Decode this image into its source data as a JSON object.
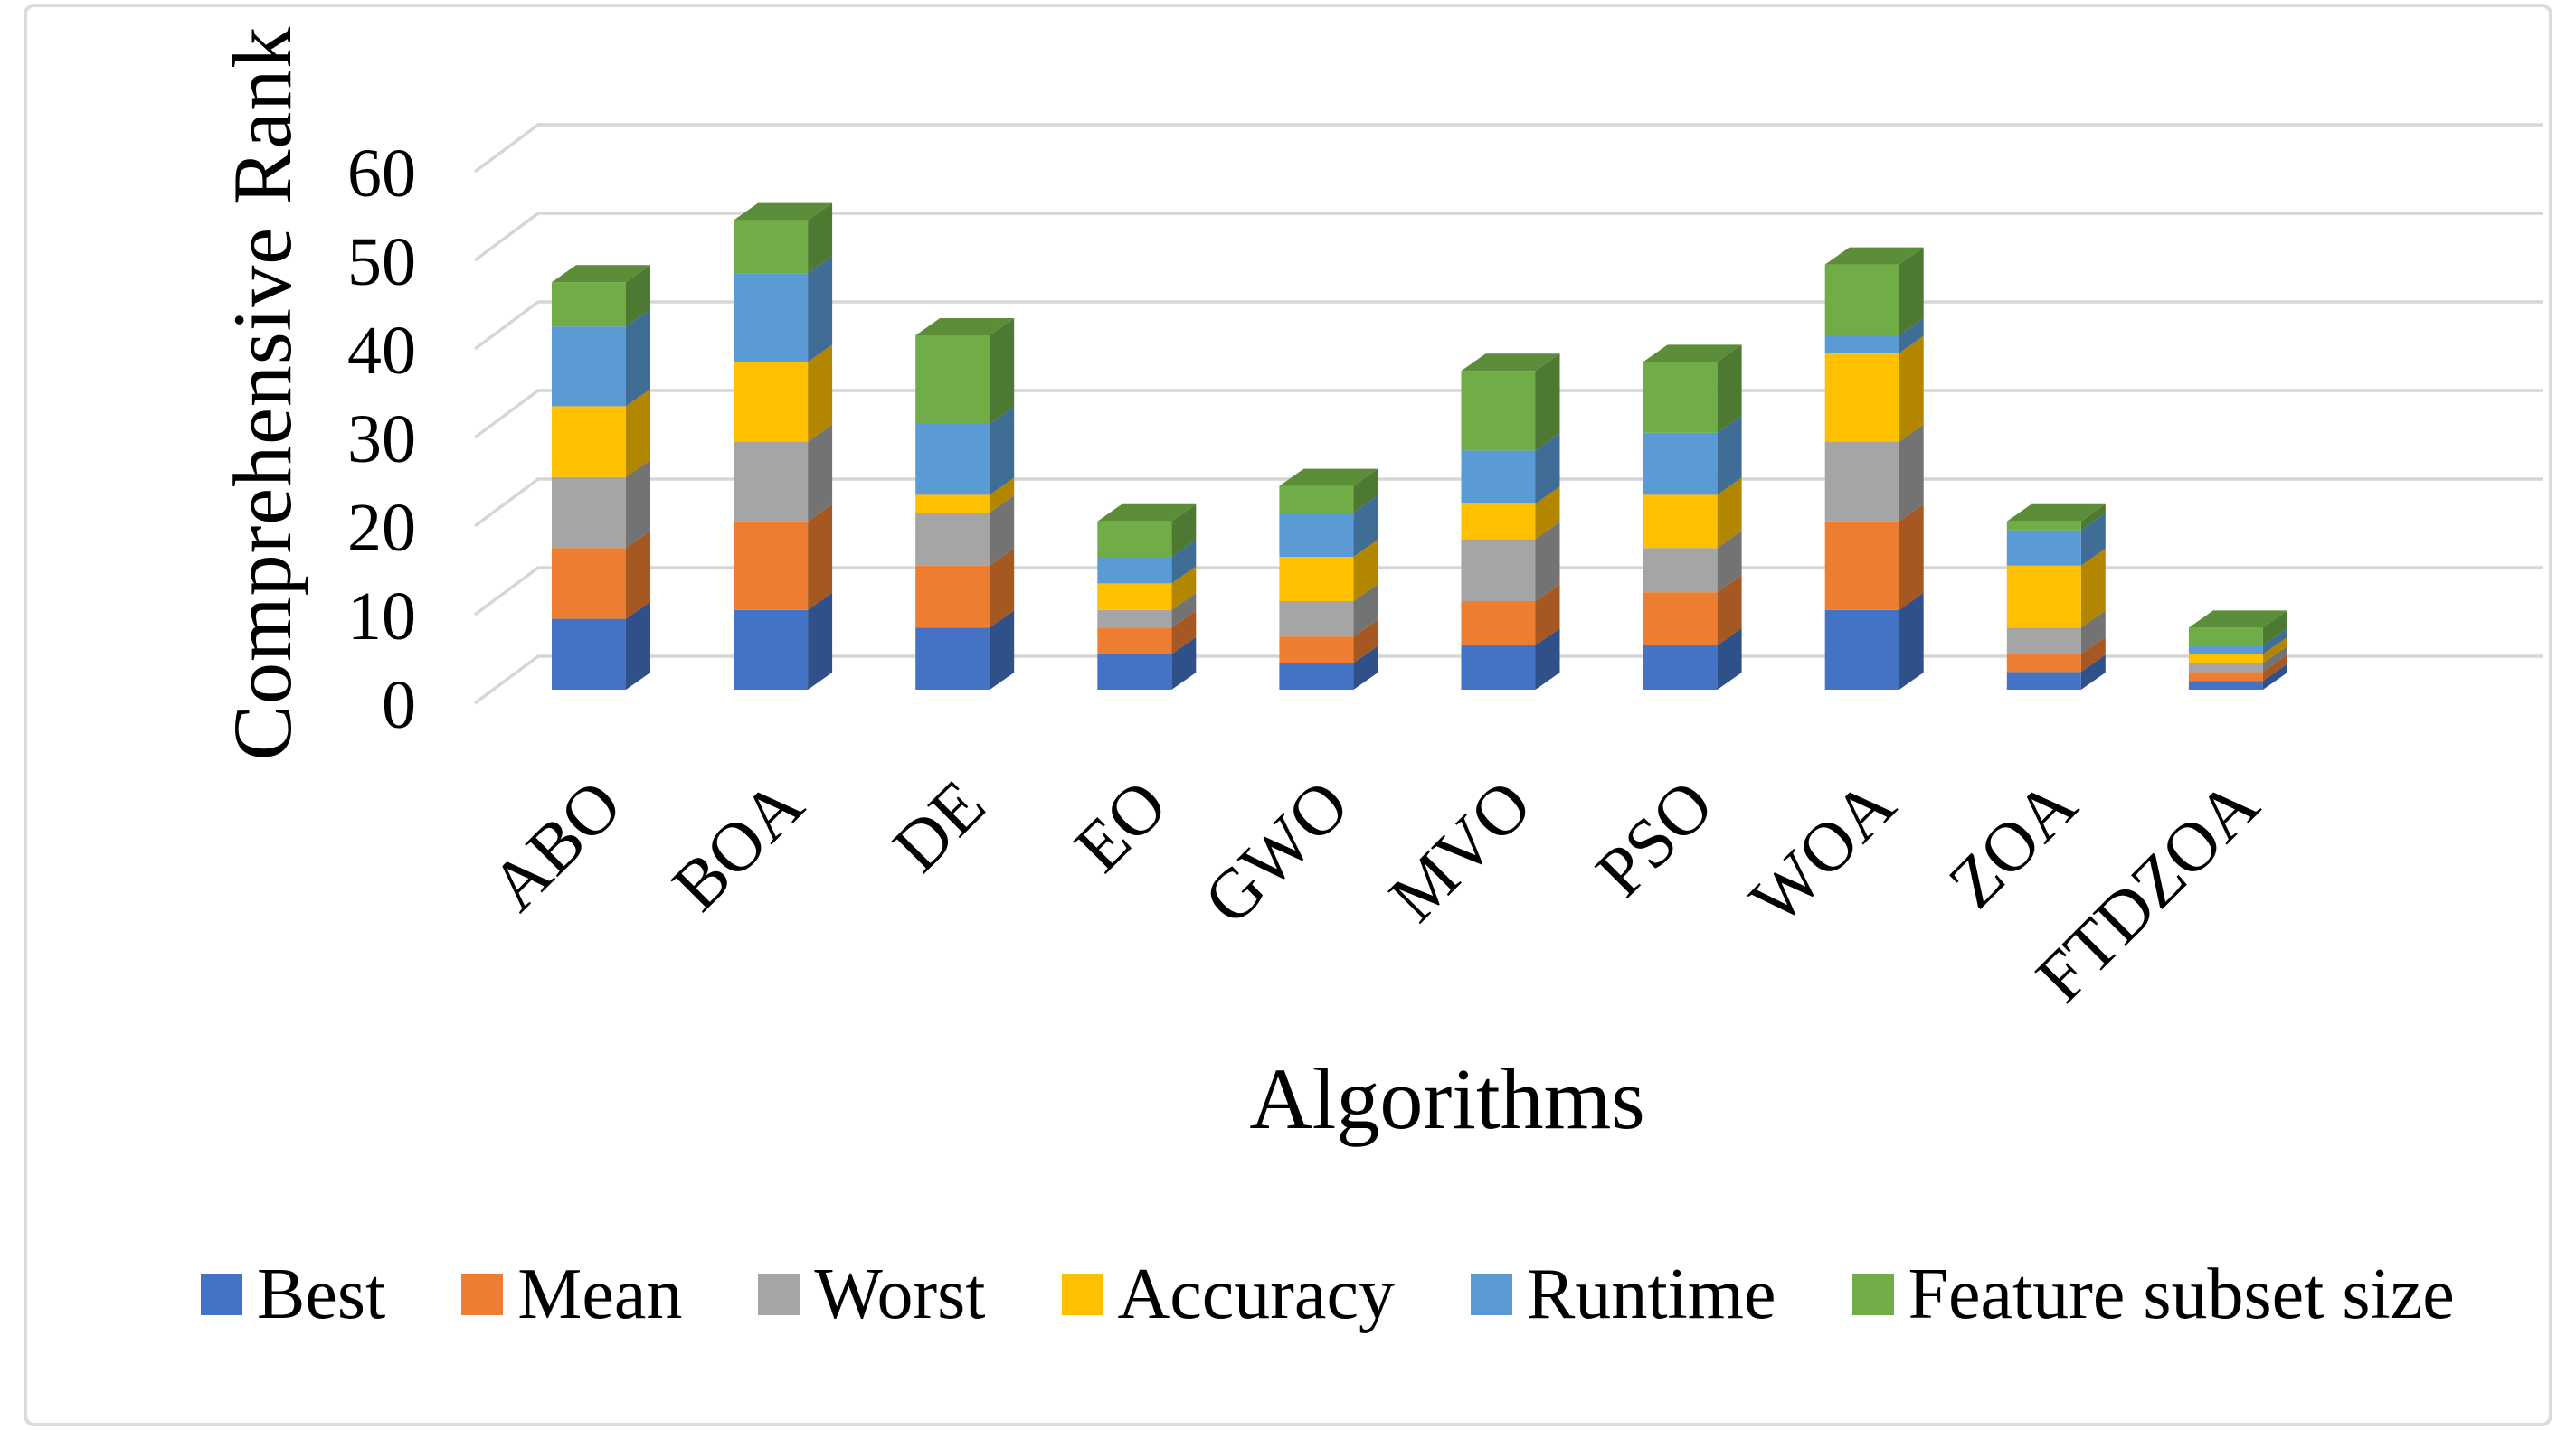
{
  "figure": {
    "y_axis_title": "Comprehensive Rank",
    "x_axis_title": "Algorithms"
  },
  "chart_data": {
    "type": "bar",
    "stacked": true,
    "projection": "3d-oblique",
    "title": "",
    "xlabel": "Algorithms",
    "ylabel": "Comprehensive Rank",
    "ylim": [
      0,
      60
    ],
    "y_ticks": [
      0,
      10,
      20,
      30,
      40,
      50,
      60
    ],
    "grid": true,
    "legend_position": "bottom",
    "gridline_color": "#d6d6d6",
    "categories": [
      "ABO",
      "BOA",
      "DE",
      "EO",
      "GWO",
      "MVO",
      "PSO",
      "WOA",
      "ZOA",
      "FTDZOA"
    ],
    "series": [
      {
        "name": "Best",
        "color": "#4472C4",
        "values": [
          8,
          9,
          7,
          4,
          3,
          5,
          5,
          9,
          2,
          1
        ]
      },
      {
        "name": "Mean",
        "color": "#ED7D31",
        "values": [
          8,
          10,
          7,
          3,
          3,
          5,
          6,
          10,
          2,
          1
        ]
      },
      {
        "name": "Worst",
        "color": "#A5A5A5",
        "values": [
          8,
          9,
          6,
          2,
          4,
          7,
          5,
          9,
          3,
          1
        ]
      },
      {
        "name": "Accuracy",
        "color": "#FFC000",
        "values": [
          8,
          9,
          2,
          3,
          5,
          4,
          6,
          10,
          7,
          1
        ]
      },
      {
        "name": "Runtime",
        "color": "#5B9BD5",
        "values": [
          9,
          10,
          8,
          3,
          5,
          6,
          7,
          2,
          4,
          1
        ]
      },
      {
        "name": "Feature subset size",
        "color": "#70AD47",
        "values": [
          5,
          6,
          10,
          4,
          3,
          9,
          8,
          8,
          1,
          2
        ]
      }
    ],
    "totals": [
      46,
      53,
      40,
      19,
      23,
      36,
      37,
      48,
      19,
      7
    ]
  }
}
